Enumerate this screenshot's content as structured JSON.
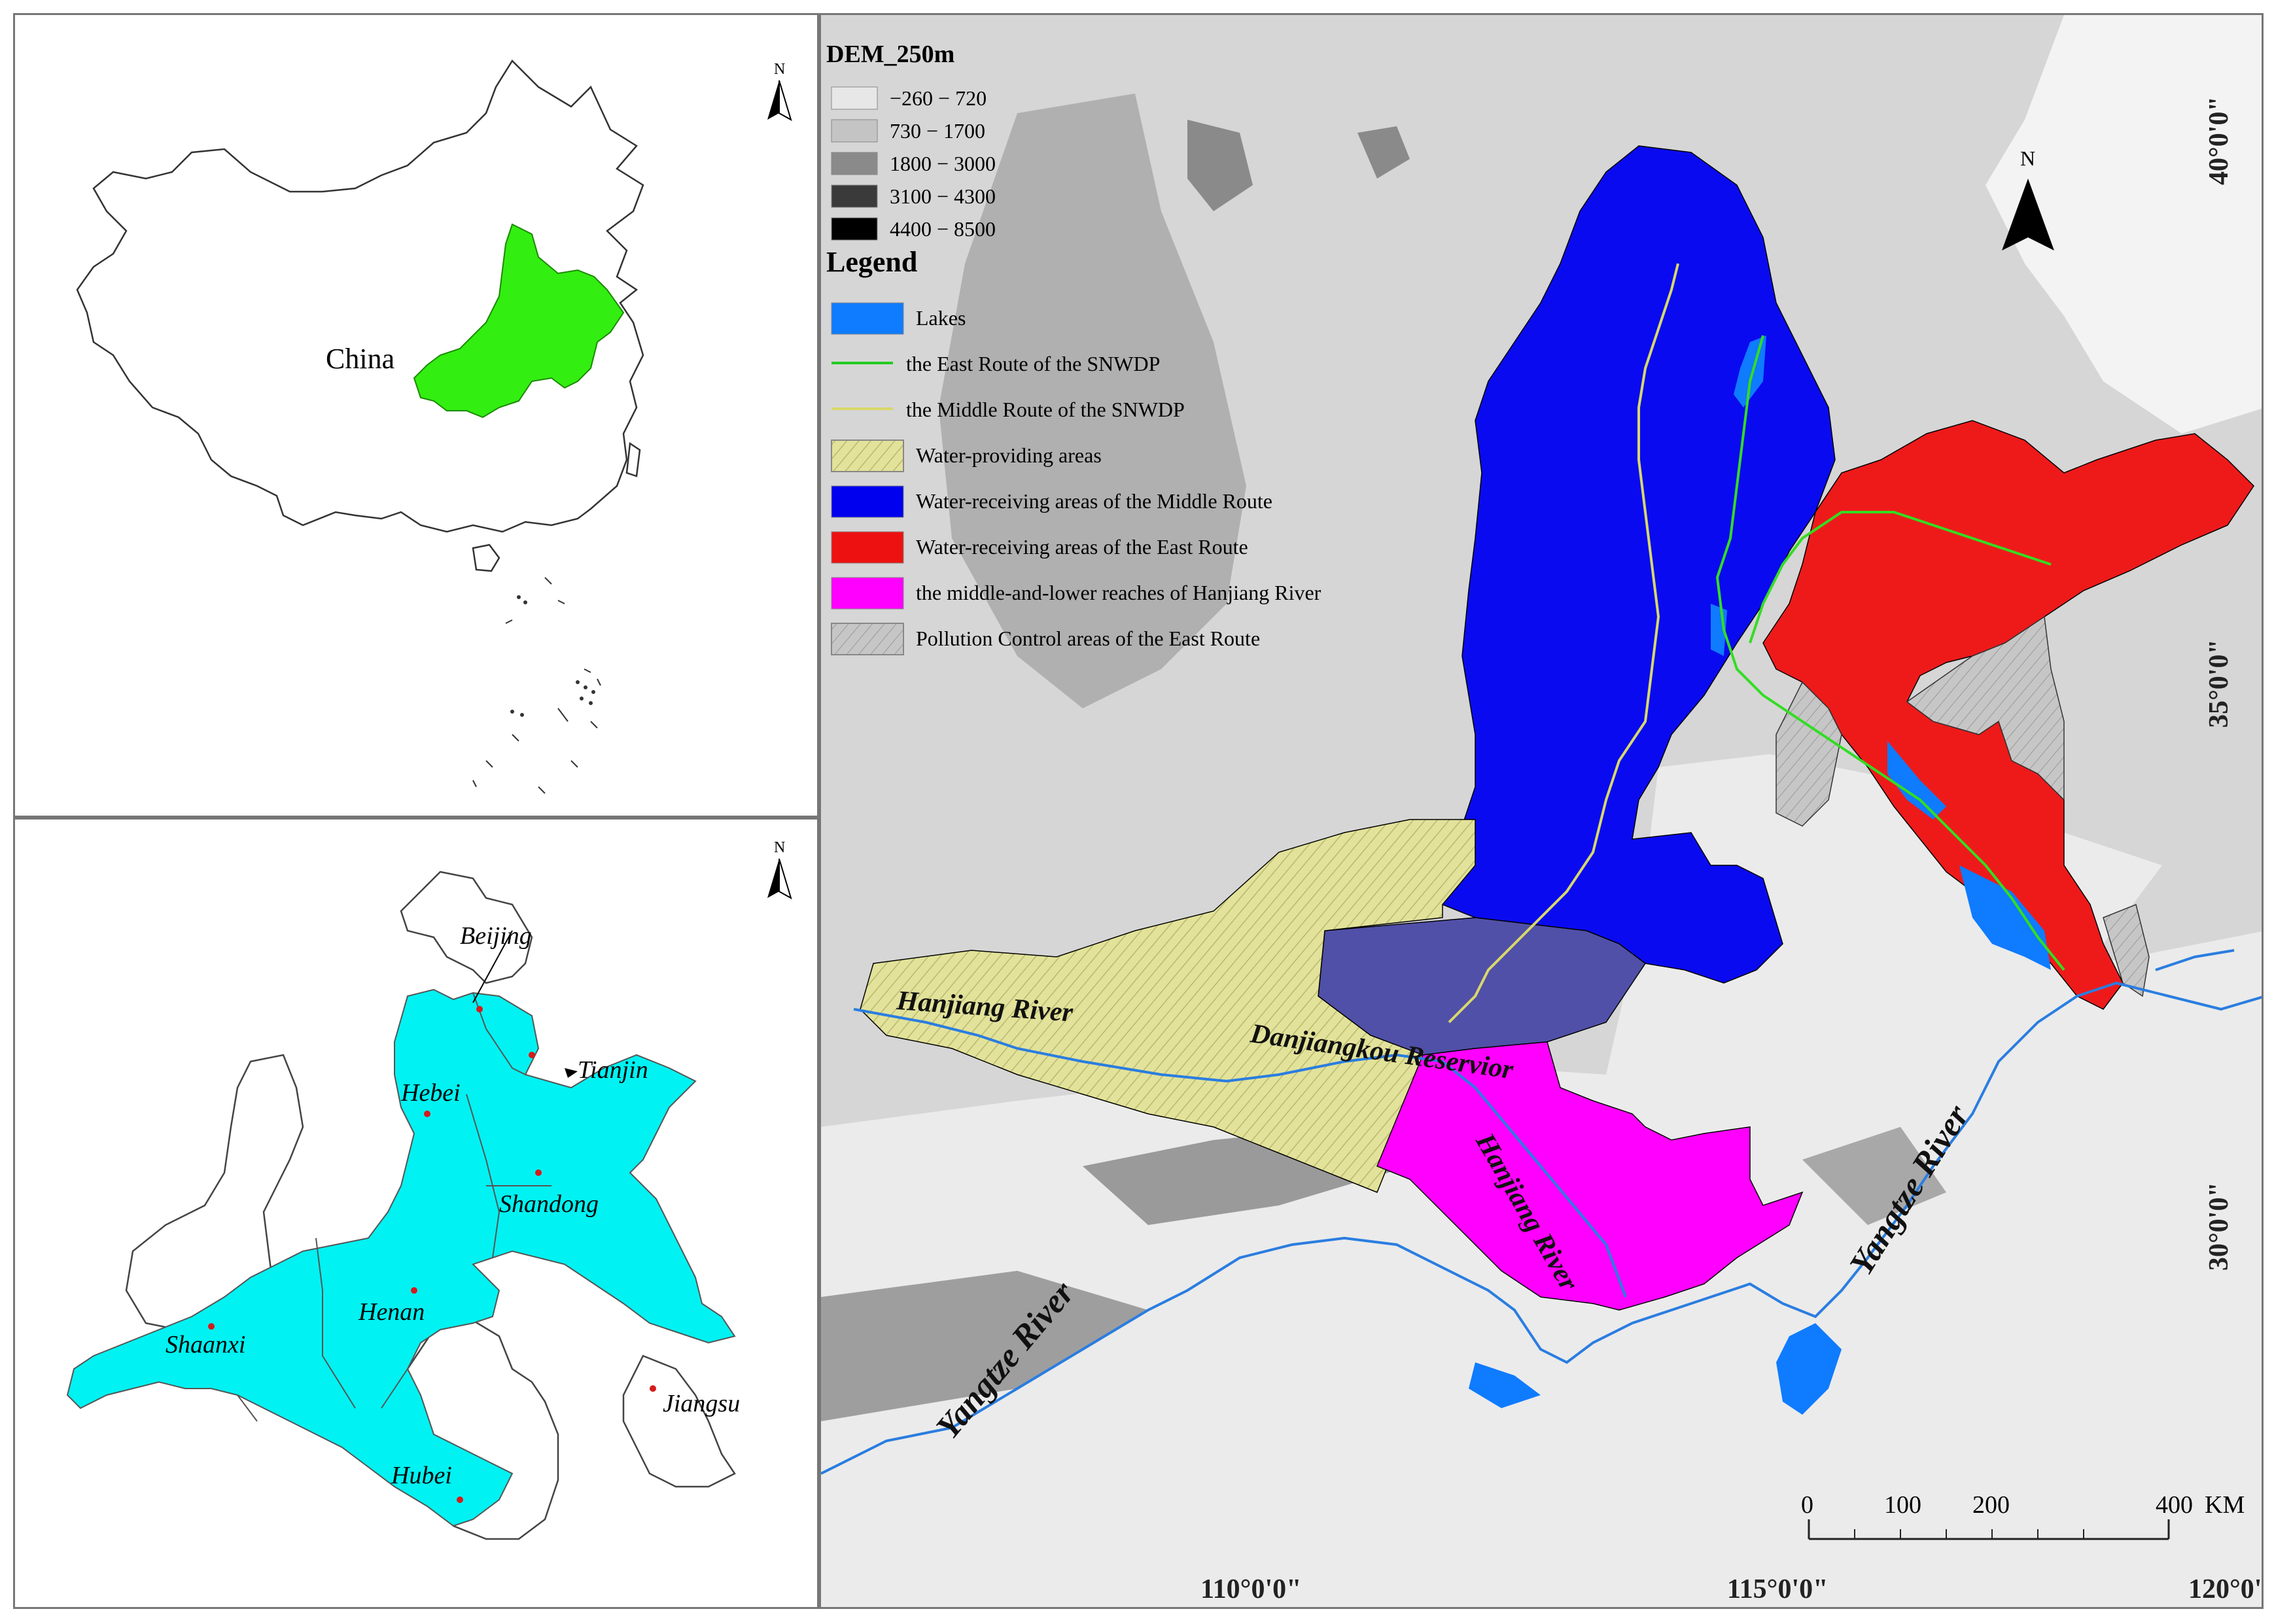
{
  "china_panel": {
    "label": "China",
    "north": "N",
    "highlight_color": "#33ee11"
  },
  "provinces_panel": {
    "north": "N",
    "highlight_color": "#00f2f2",
    "provinces": [
      "Beijing",
      "Tianjin",
      "Hebei",
      "Shandong",
      "Henan",
      "Shaanxi",
      "Jiangsu",
      "Hubei"
    ]
  },
  "main_map": {
    "north": "N",
    "dem": {
      "title": "DEM_250m",
      "classes": [
        {
          "label": "−260 − 720",
          "color": "#e7e7e7"
        },
        {
          "label": "730 − 1700",
          "color": "#c4c4c4"
        },
        {
          "label": "1800 − 3000",
          "color": "#8a8a8a"
        },
        {
          "label": "3100 − 4300",
          "color": "#3a3a3a"
        },
        {
          "label": "4400 − 8500",
          "color": "#000000"
        }
      ]
    },
    "legend": {
      "title": "Legend",
      "items": [
        {
          "label": "Lakes",
          "color": "#0f7bff",
          "kind": "box"
        },
        {
          "label": "the East Route of the SNWDP",
          "color": "#22cc22",
          "kind": "line"
        },
        {
          "label": "the Middle Route of the SNWDP",
          "color": "#d8d86a",
          "kind": "line"
        },
        {
          "label": "Water-providing areas",
          "color": "#dcdc9a",
          "kind": "hatch"
        },
        {
          "label": "Water-receiving areas of the Middle Route",
          "color": "#0000ee",
          "kind": "box"
        },
        {
          "label": "Water-receiving areas of the East Route",
          "color": "#ee1111",
          "kind": "box"
        },
        {
          "label": "the middle-and-lower reaches of Hanjiang River",
          "color": "#ff00ff",
          "kind": "box"
        },
        {
          "label": "Pollution Control areas of  the East Route",
          "color": "#cfcfcf",
          "kind": "hatch"
        }
      ]
    },
    "labels": {
      "hanjiang_upper": "Hanjiang River",
      "danjiangkou": "Danjiangkou  Reservior",
      "hanjiang_lower": "Hanjiang River",
      "yangtze_west": "Yangtze River",
      "yangtze_east": "Yangtze River"
    },
    "lat_labels": [
      "40°0'0\"",
      "35°0'0\"",
      "30°0'0\""
    ],
    "lon_labels": [
      "110°0'0\"",
      "115°0'0\"",
      "120°0'"
    ],
    "scale": {
      "ticks": [
        "0",
        "100",
        "200",
        "400"
      ],
      "unit": "KM"
    }
  }
}
